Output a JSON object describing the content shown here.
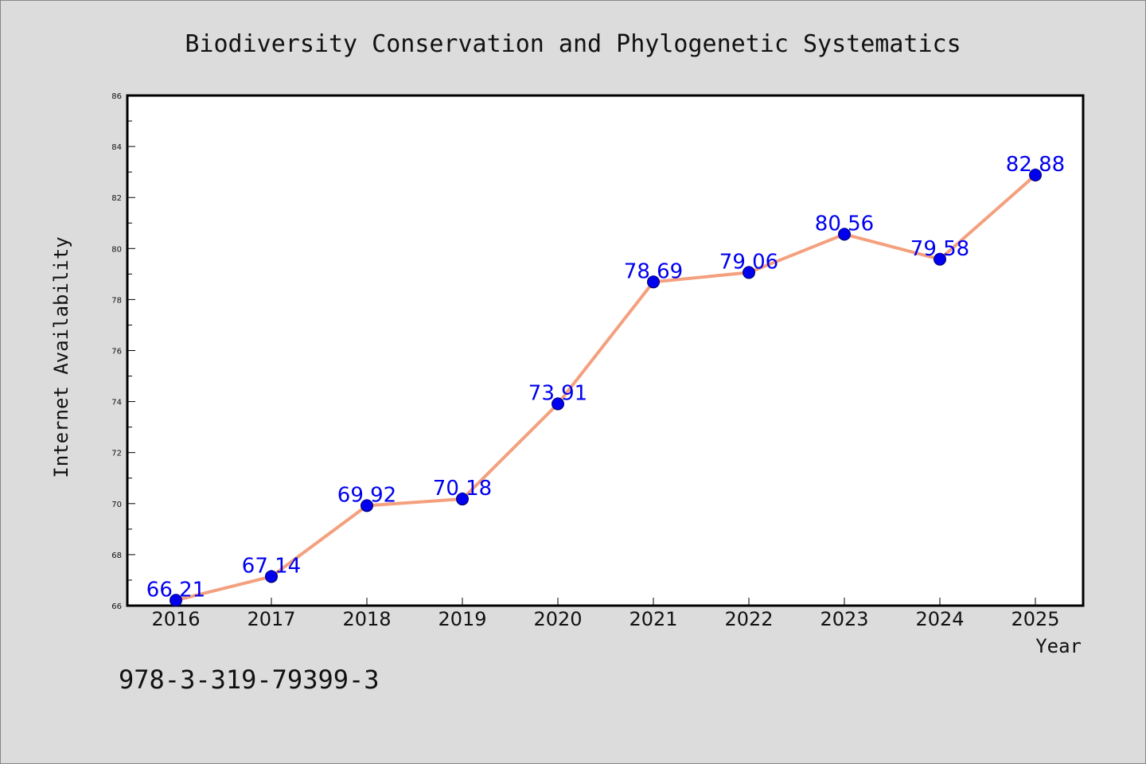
{
  "chart_data": {
    "type": "line",
    "title": "Biodiversity Conservation and Phylogenetic Systematics",
    "xlabel": "Year",
    "ylabel": "Internet Availability",
    "categories": [
      "2016",
      "2017",
      "2018",
      "2019",
      "2020",
      "2021",
      "2022",
      "2023",
      "2024",
      "2025"
    ],
    "series": [
      {
        "values": [
          66.21,
          67.14,
          69.92,
          70.18,
          73.91,
          78.69,
          79.06,
          80.56,
          79.58,
          82.88
        ],
        "labels": [
          "66.21",
          "67.14",
          "69.92",
          "70.18",
          "73.91",
          "78.69",
          "79.06",
          "80.56",
          "79.58",
          "82.88"
        ],
        "line_color": "#f4a07e",
        "marker_color": "#0000ee"
      }
    ],
    "ylim": [
      66,
      86
    ],
    "yticks": [
      "66",
      "68",
      "70",
      "72",
      "74",
      "76",
      "78",
      "80",
      "82",
      "84",
      "86"
    ],
    "grid": false,
    "legend": "none"
  },
  "footer": {
    "isbn": "978-3-319-79399-3"
  },
  "colors": {
    "background": "#dcdcdc",
    "plot_background": "#ffffff",
    "label_color": "#0000ee"
  }
}
